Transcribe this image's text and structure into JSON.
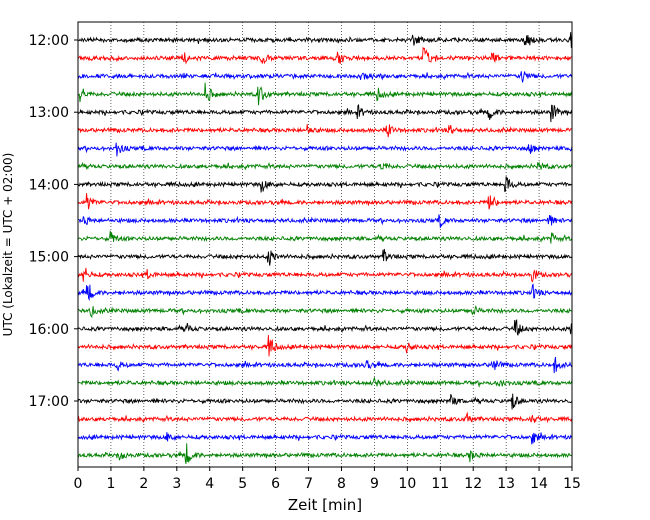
{
  "chart_data": {
    "type": "line",
    "chart_kind": "helicorder",
    "xlabel": "Zeit  [min]",
    "ylabel": "UTC (Lokalzeit = UTC + 02:00)",
    "xlim": [
      0,
      15
    ],
    "x_ticks": [
      "0",
      "1",
      "2",
      "3",
      "4",
      "5",
      "6",
      "7",
      "8",
      "9",
      "10",
      "11",
      "12",
      "13",
      "14",
      "15"
    ],
    "y_ticks": [
      "12:00",
      "13:00",
      "14:00",
      "15:00",
      "16:00",
      "17:00"
    ],
    "row_interval_min": 15,
    "row_colors": [
      "#000000",
      "#ff0000",
      "#0000ff",
      "#008000"
    ],
    "grid": "vertical dotted at each minute",
    "series": [
      {
        "start": "12:00",
        "color": "#000000",
        "events": [
          [
            10.2,
            0.5
          ],
          [
            13.6,
            0.9
          ],
          [
            15.0,
            0.6
          ]
        ]
      },
      {
        "start": "12:15",
        "color": "#ff0000",
        "events": [
          [
            3.2,
            0.6
          ],
          [
            5.6,
            0.5
          ],
          [
            7.9,
            0.6
          ],
          [
            10.5,
            1.0
          ],
          [
            12.6,
            0.4
          ]
        ]
      },
      {
        "start": "12:30",
        "color": "#0000ff",
        "events": [
          [
            8.6,
            0.5
          ],
          [
            13.5,
            0.6
          ]
        ]
      },
      {
        "start": "12:45",
        "color": "#008000",
        "events": [
          [
            0.1,
            0.6
          ],
          [
            3.9,
            0.9
          ],
          [
            5.5,
            1.0
          ],
          [
            9.1,
            0.5
          ]
        ]
      },
      {
        "start": "13:00",
        "color": "#000000",
        "events": [
          [
            8.5,
            0.5
          ],
          [
            12.5,
            0.6
          ],
          [
            14.4,
            0.8
          ]
        ]
      },
      {
        "start": "13:15",
        "color": "#ff0000",
        "events": [
          [
            7.0,
            0.4
          ],
          [
            9.4,
            0.6
          ],
          [
            11.3,
            0.4
          ]
        ]
      },
      {
        "start": "13:30",
        "color": "#0000ff",
        "events": [
          [
            1.2,
            0.6
          ],
          [
            13.7,
            0.5
          ],
          [
            15.0,
            0.7
          ]
        ]
      },
      {
        "start": "13:45",
        "color": "#008000",
        "events": [
          [
            9.2,
            0.5
          ],
          [
            14.0,
            0.4
          ]
        ]
      },
      {
        "start": "14:00",
        "color": "#000000",
        "events": [
          [
            5.6,
            0.6
          ],
          [
            13.0,
            0.8
          ]
        ]
      },
      {
        "start": "14:15",
        "color": "#ff0000",
        "events": [
          [
            0.3,
            0.7
          ],
          [
            12.5,
            0.9
          ]
        ]
      },
      {
        "start": "14:30",
        "color": "#0000ff",
        "events": [
          [
            0.2,
            0.4
          ],
          [
            11.0,
            0.5
          ],
          [
            14.3,
            0.6
          ]
        ]
      },
      {
        "start": "14:45",
        "color": "#008000",
        "events": [
          [
            1.0,
            0.6
          ],
          [
            14.4,
            0.4
          ]
        ]
      },
      {
        "start": "15:00",
        "color": "#000000",
        "events": [
          [
            5.8,
            0.8
          ],
          [
            9.3,
            0.5
          ]
        ]
      },
      {
        "start": "15:15",
        "color": "#ff0000",
        "events": [
          [
            0.2,
            0.7
          ],
          [
            2.1,
            0.4
          ],
          [
            13.8,
            0.5
          ]
        ]
      },
      {
        "start": "15:30",
        "color": "#0000ff",
        "events": [
          [
            0.3,
            0.9
          ],
          [
            13.8,
            0.6
          ]
        ]
      },
      {
        "start": "15:45",
        "color": "#008000",
        "events": [
          [
            0.4,
            0.5
          ],
          [
            12.0,
            0.4
          ]
        ]
      },
      {
        "start": "16:00",
        "color": "#000000",
        "events": [
          [
            3.3,
            0.4
          ],
          [
            13.3,
            0.8
          ],
          [
            15.0,
            0.6
          ]
        ]
      },
      {
        "start": "16:15",
        "color": "#ff0000",
        "events": [
          [
            5.8,
            1.0
          ],
          [
            10.0,
            0.5
          ]
        ]
      },
      {
        "start": "16:30",
        "color": "#0000ff",
        "events": [
          [
            1.2,
            0.4
          ],
          [
            8.7,
            0.6
          ],
          [
            12.6,
            0.7
          ],
          [
            14.5,
            0.6
          ]
        ]
      },
      {
        "start": "16:45",
        "color": "#008000",
        "events": [
          [
            9.0,
            0.4
          ],
          [
            12.8,
            0.4
          ]
        ]
      },
      {
        "start": "17:00",
        "color": "#000000",
        "events": [
          [
            11.3,
            0.6
          ],
          [
            13.2,
            0.7
          ]
        ]
      },
      {
        "start": "17:15",
        "color": "#ff0000",
        "events": [
          [
            11.8,
            0.5
          ],
          [
            13.8,
            0.4
          ]
        ]
      },
      {
        "start": "17:30",
        "color": "#0000ff",
        "events": [
          [
            2.7,
            0.4
          ],
          [
            13.8,
            0.6
          ]
        ]
      },
      {
        "start": "17:45",
        "color": "#008000",
        "events": [
          [
            1.3,
            0.5
          ],
          [
            3.3,
            0.9
          ],
          [
            11.9,
            0.5
          ]
        ]
      }
    ]
  }
}
